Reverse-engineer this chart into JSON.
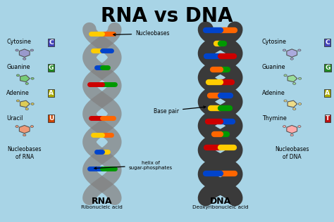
{
  "title": "RNA vs DNA",
  "bg_color": "#a8d4e6",
  "left_labels": [
    "Cytosine",
    "Guanine",
    "Adenine",
    "Uracil"
  ],
  "right_labels": [
    "Cytosine",
    "Guanine",
    "Adenine",
    "Thymine"
  ],
  "left_badge_colors": [
    "#4444bb",
    "#228822",
    "#aaaa00",
    "#cc4400"
  ],
  "right_badge_colors": [
    "#4444bb",
    "#228822",
    "#aaaa00",
    "#bb1111"
  ],
  "left_letters": [
    "C",
    "G",
    "A",
    "U"
  ],
  "right_letters": [
    "C",
    "G",
    "A",
    "T"
  ],
  "left_mol_colors": [
    "#9999cc",
    "#77cc77",
    "#ddcc55",
    "#ee9977"
  ],
  "right_mol_colors": [
    "#aaaadd",
    "#99dd99",
    "#eedd88",
    "#ffaaaa"
  ],
  "rna_label": "RNA",
  "dna_label": "DNA",
  "rna_sublabel": "Ribonucleic acid",
  "dna_sublabel": "Deoxyribonucleic acid",
  "left_bottom": "Nucleobases\nof RNA",
  "right_bottom": "Nucleobases\nof DNA",
  "ann_nucleobases": "Nucleobases",
  "ann_basepair": "Base pair",
  "ann_helix": "helix of\nsugar-phosphates",
  "base_colors": [
    "#ff6600",
    "#ffcc00",
    "#0044cc",
    "#009900",
    "#cc0000"
  ],
  "rna_helix_color": "#909090",
  "rna_helix_dark": "#707070",
  "dna_helix_color": "#3a3a3a",
  "dna_helix_dark": "#222222"
}
